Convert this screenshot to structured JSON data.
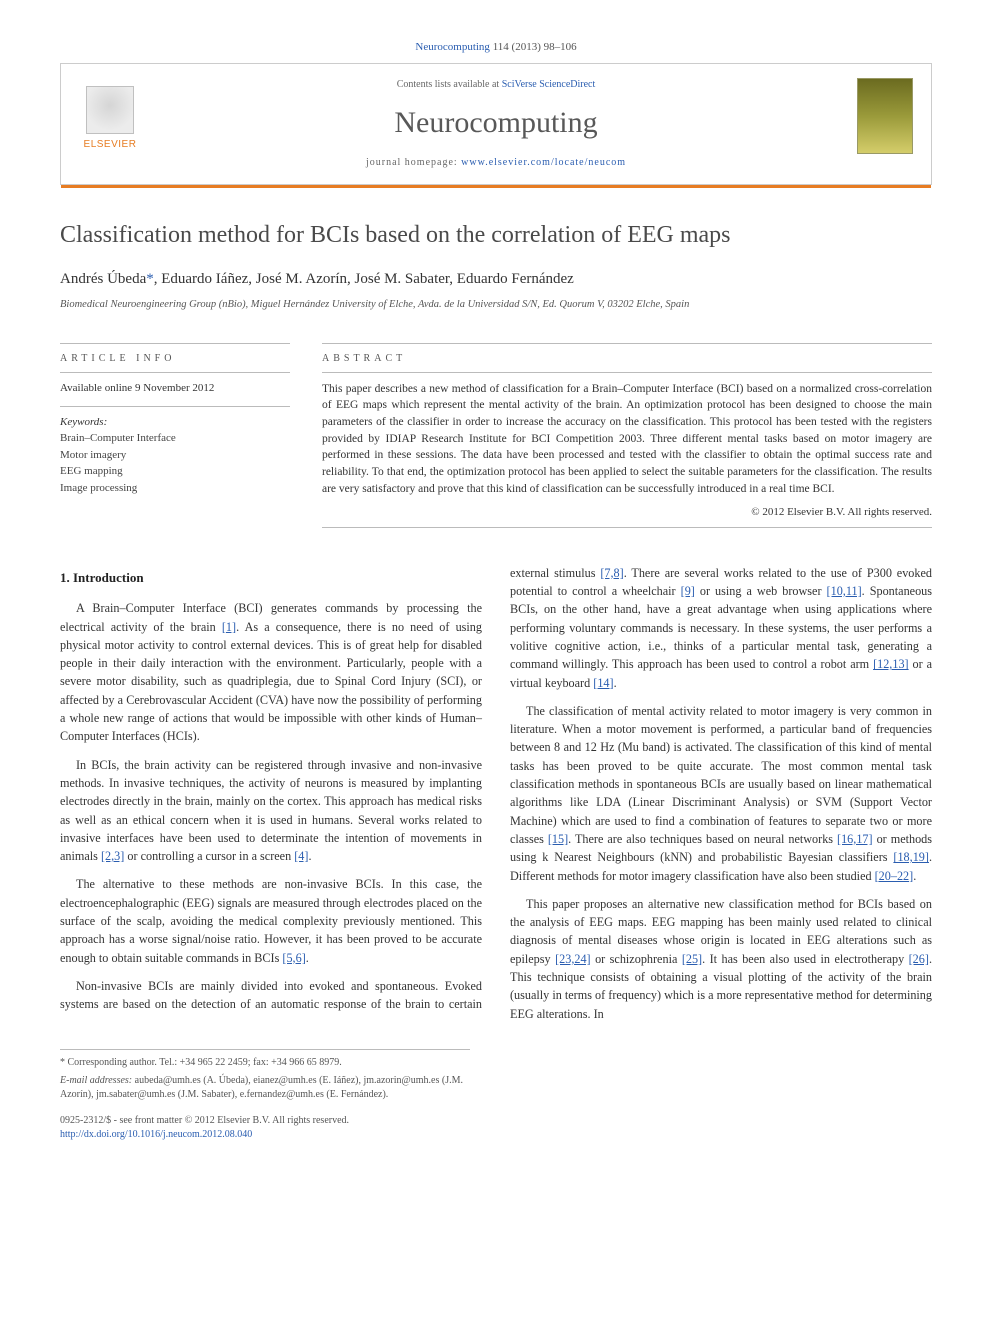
{
  "citation": {
    "journal_link_text": "Neurocomputing",
    "vol_pages": " 114 (2013) 98–106"
  },
  "header": {
    "contents_prefix": "Contents lists available at ",
    "contents_link": "SciVerse ScienceDirect",
    "journal_name": "Neurocomputing",
    "homepage_prefix": "journal homepage: ",
    "homepage_url": "www.elsevier.com/locate/neucom",
    "elsevier_label": "ELSEVIER"
  },
  "article": {
    "title": "Classification method for BCIs based on the correlation of EEG maps",
    "authors_html": "Andrés Úbeda",
    "authors_rest": ", Eduardo Iáñez, José M. Azorín, José M. Sabater, Eduardo Fernández",
    "corr_marker": "*",
    "affiliation": "Biomedical Neuroengineering Group (nBio), Miguel Hernández University of Elche, Avda. de la Universidad S/N, Ed. Quorum V, 03202 Elche, Spain"
  },
  "info": {
    "label": "ARTICLE INFO",
    "available": "Available online 9 November 2012",
    "keywords_label": "Keywords:",
    "keywords": [
      "Brain–Computer Interface",
      "Motor imagery",
      "EEG mapping",
      "Image processing"
    ]
  },
  "abstract": {
    "label": "ABSTRACT",
    "text": "This paper describes a new method of classification for a Brain–Computer Interface (BCI) based on a normalized cross-correlation of EEG maps which represent the mental activity of the brain. An optimization protocol has been designed to choose the main parameters of the classifier in order to increase the accuracy on the classification. This protocol has been tested with the registers provided by IDIAP Research Institute for BCI Competition 2003. Three different mental tasks based on motor imagery are performed in these sessions. The data have been processed and tested with the classifier to obtain the optimal success rate and reliability. To that end, the optimization protocol has been applied to select the suitable parameters for the classification. The results are very satisfactory and prove that this kind of classification can be successfully introduced in a real time BCI.",
    "copyright": "© 2012 Elsevier B.V. All rights reserved."
  },
  "body": {
    "section_title": "1.  Introduction",
    "p1a": "A Brain–Computer Interface (BCI) generates commands by processing the electrical activity of the brain ",
    "r1": "[1]",
    "p1b": ". As a consequence, there is no need of using physical motor activity to control external devices. This is of great help for disabled people in their daily interaction with the environment. Particularly, people with a severe motor disability, such as quadriplegia, due to Spinal Cord Injury (SCI), or affected by a Cerebrovascular Accident (CVA) have now the possibility of performing a whole new range of actions that would be impossible with other kinds of Human–Computer Interfaces (HCIs).",
    "p2a": "In BCIs, the brain activity can be registered through invasive and non-invasive methods. In invasive techniques, the activity of neurons is measured by implanting electrodes directly in the brain, mainly on the cortex. This approach has medical risks as well as an ethical concern when it is used in humans. Several works related to invasive interfaces have been used to determinate the intention of movements in animals ",
    "r2": "[2,3]",
    "p2b": " or controlling a cursor in a screen ",
    "r3": "[4]",
    "p2c": ".",
    "p3a": "The alternative to these methods are non-invasive BCIs. In this case, the electroencephalographic (EEG) signals are measured through electrodes placed on the surface of the scalp, avoiding the medical complexity previously mentioned. This approach has a worse signal/noise ratio. However, it has been proved to be accurate enough to obtain suitable commands in BCIs ",
    "r4": "[5,6]",
    "p3b": ".",
    "p4a": "Non-invasive BCIs are mainly divided into evoked and spontaneous. Evoked systems are based on the detection of an automatic response of the brain to certain external stimulus ",
    "r5": "[7,8]",
    "p4b": ". There are several works related to the use of P300 evoked potential to control a wheelchair ",
    "r6": "[9]",
    "p4c": " or using a web browser ",
    "r7": "[10,11]",
    "p4d": ". Spontaneous BCIs, on the other hand, have a great advantage when using applications where performing voluntary commands is necessary. In these systems, the user performs a volitive cognitive action, i.e., thinks of a particular mental task, generating a command willingly. This approach has been used to control a robot arm ",
    "r8": "[12,13]",
    "p4e": " or a virtual keyboard ",
    "r9": "[14]",
    "p4f": ".",
    "p5a": "The classification of mental activity related to motor imagery is very common in literature. When a motor movement is performed, a particular band of frequencies between 8 and 12 Hz (Mu band) is activated. The classification of this kind of mental tasks has been proved to be quite accurate. The most common mental task classification methods in spontaneous BCIs are usually based on linear mathematical algorithms like LDA (Linear Discriminant Analysis) or SVM (Support Vector Machine) which are used to find a combination of features to separate two or more classes ",
    "r10": "[15]",
    "p5b": ". There are also techniques based on neural networks ",
    "r11": "[16,17]",
    "p5c": " or methods using k Nearest Neighbours (kNN) and probabilistic Bayesian classifiers ",
    "r12": "[18,19]",
    "p5d": ". Different methods for motor imagery classification have also been studied ",
    "r13": "[20–22]",
    "p5e": ".",
    "p6a": "This paper proposes an alternative new classification method for BCIs based on the analysis of EEG maps. EEG mapping has been mainly used related to clinical diagnosis of mental diseases whose origin is located in EEG alterations such as epilepsy ",
    "r14": "[23,24]",
    "p6b": " or schizophrenia ",
    "r15": "[25]",
    "p6c": ". It has been also used in electrotherapy ",
    "r16": "[26]",
    "p6d": ". This technique consists of obtaining a visual plotting of the activity of the brain (usually in terms of frequency) which is a more representative method for determining EEG alterations. In"
  },
  "footer": {
    "corr_line": "* Corresponding author. Tel.: +34 965 22 2459; fax: +34 966 65 8979.",
    "emails_label": "E-mail addresses:",
    "emails": " aubeda@umh.es (A. Úbeda), eianez@umh.es (E. Iáñez), jm.azorin@umh.es (J.M. Azorín), jm.sabater@umh.es (J.M. Sabater), e.fernandez@umh.es (E. Fernández).",
    "issn_line": "0925-2312/$ - see front matter © 2012 Elsevier B.V. All rights reserved.",
    "doi_url": "http://dx.doi.org/10.1016/j.neucom.2012.08.040"
  },
  "colors": {
    "accent": "#e77c22",
    "link": "#2a5db0"
  }
}
